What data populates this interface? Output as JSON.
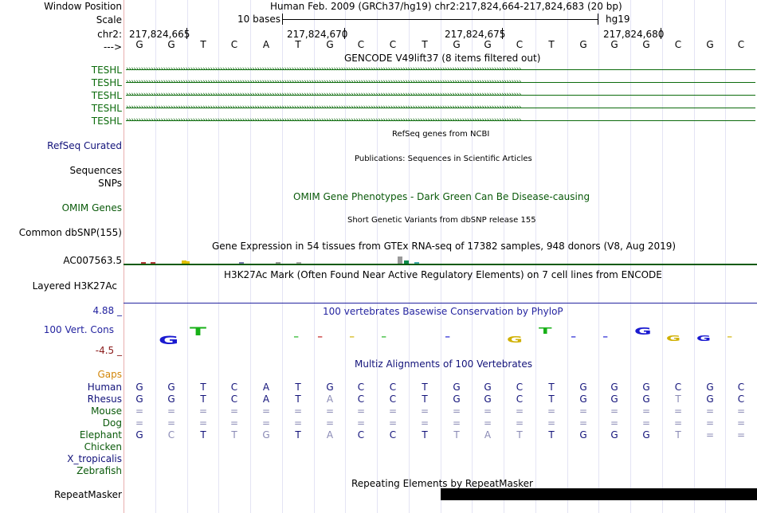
{
  "header": {
    "window_position_label": "Window Position",
    "scale_label": "Scale",
    "chrom_label": "chr2:",
    "strand_label": "--->",
    "title": "Human Feb. 2009 (GRCh37/hg19)   chr2:217,824,664-217,824,683 (20 bp)",
    "scale_text": "10 bases",
    "assembly": "hg19",
    "coords": [
      "217,824,665",
      "217,824,670",
      "217,824,675",
      "217,824,680"
    ],
    "bases": [
      "G",
      "G",
      "T",
      "C",
      "A",
      "T",
      "G",
      "C",
      "C",
      "T",
      "G",
      "G",
      "C",
      "T",
      "G",
      "G",
      "G",
      "C",
      "G",
      "C"
    ]
  },
  "tracks": {
    "gencode_title": "GENCODE V49lift37 (8 items filtered out)",
    "gencode_items": [
      "TESHL",
      "TESHL",
      "TESHL",
      "TESHL",
      "TESHL"
    ],
    "refseq_title": "RefSeq genes from NCBI",
    "refseq_label": "RefSeq Curated",
    "pubs_title": "Publications: Sequences in Scientific Articles",
    "sequences_label": "Sequences",
    "snps_label": "SNPs",
    "omim_title": "OMIM Gene Phenotypes - Dark Green Can Be Disease-causing",
    "omim_label": "OMIM Genes",
    "dbsnp_title": "Short Genetic Variants from dbSNP release 155",
    "dbsnp_label": "Common dbSNP(155)",
    "gtex_title": "Gene Expression in 54 tissues from GTEx RNA-seq of 17382 samples, 948 donors (V8, Aug 2019)",
    "gtex_label": "AC007563.5",
    "h3k27_title": "H3K27Ac Mark (Often Found Near Active Regulatory Elements) on 7 cell lines from ENCODE",
    "h3k27_label": "Layered H3K27Ac",
    "phylop_title": "100 vertebrates Basewise Conservation by PhyloP",
    "phylop_max": "4.88 _",
    "phylop_label": "100 Vert. Cons",
    "phylop_min": "-4.5 _",
    "multiz_title": "Multiz Alignments of 100 Vertebrates",
    "gaps_label": "Gaps",
    "species": [
      {
        "name": "Human",
        "seq": [
          "G",
          "G",
          "T",
          "C",
          "A",
          "T",
          "G",
          "C",
          "C",
          "T",
          "G",
          "G",
          "C",
          "T",
          "G",
          "G",
          "G",
          "C",
          "G",
          "C"
        ]
      },
      {
        "name": "Rhesus",
        "seq": [
          "G",
          "G",
          "T",
          "C",
          "A",
          "T",
          "A",
          "C",
          "C",
          "T",
          "G",
          "G",
          "C",
          "T",
          "G",
          "G",
          "G",
          "T",
          "G",
          "C"
        ]
      },
      {
        "name": "Mouse",
        "seq": [
          "=",
          "=",
          "=",
          "=",
          "=",
          "=",
          "=",
          "=",
          "=",
          "=",
          "=",
          "=",
          "=",
          "=",
          "=",
          "=",
          "=",
          "=",
          "=",
          "="
        ]
      },
      {
        "name": "Dog",
        "seq": [
          "=",
          "=",
          "=",
          "=",
          "=",
          "=",
          "=",
          "=",
          "=",
          "=",
          "=",
          "=",
          "=",
          "=",
          "=",
          "=",
          "=",
          "=",
          "=",
          "="
        ]
      },
      {
        "name": "Elephant",
        "seq": [
          "G",
          "C",
          "T",
          "T",
          "G",
          "T",
          "A",
          "C",
          "C",
          "T",
          "T",
          "A",
          "T",
          "T",
          "G",
          "G",
          "G",
          "T",
          "=",
          "="
        ]
      },
      {
        "name": "Chicken",
        "seq": []
      },
      {
        "name": "X_tropicalis",
        "seq": []
      },
      {
        "name": "Zebrafish",
        "seq": []
      }
    ],
    "repeat_title": "Repeating Elements by RepeatMasker",
    "repeat_label": "RepeatMasker"
  },
  "colors": {
    "gencode": "#0c6b0c",
    "refseq": "#12127a",
    "omim": "#0a5a0a",
    "phylop": "#2424a0",
    "gaps": "#d2860a",
    "multiz": "#12127a",
    "mismatch": "#8a8ab5",
    "mouse": "#0a5a0a"
  }
}
